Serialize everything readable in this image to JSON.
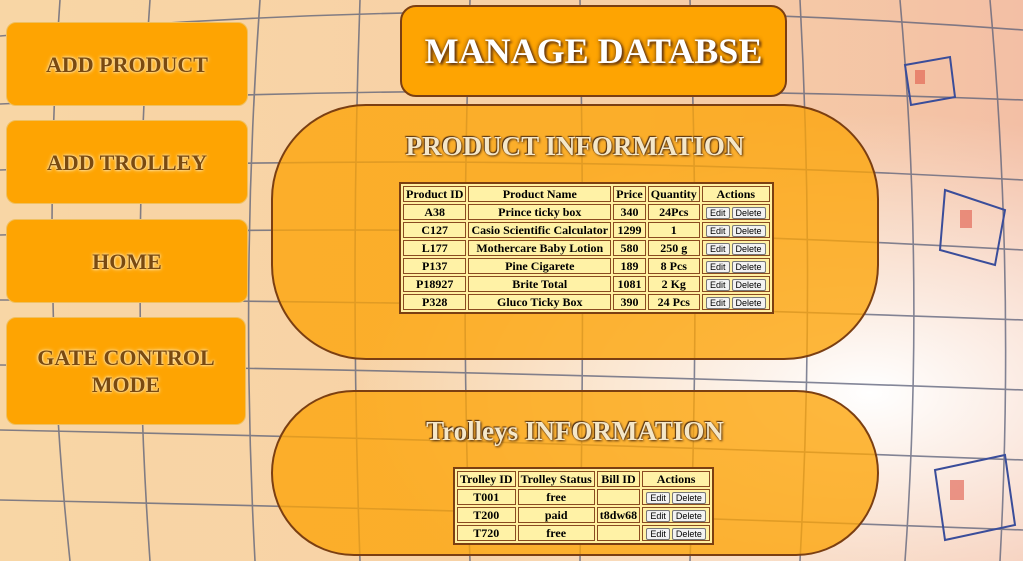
{
  "sidebar": {
    "items": [
      {
        "label": "ADD PRODUCT"
      },
      {
        "label": "ADD TROLLEY"
      },
      {
        "label": "HOME"
      },
      {
        "label": "GATE CONTROL MODE"
      }
    ]
  },
  "header": {
    "title": "MANAGE DATABSE"
  },
  "products": {
    "title": "PRODUCT INFORMATION",
    "columns": [
      "Product ID",
      "Product Name",
      "Price",
      "Quantity",
      "Actions"
    ],
    "rows": [
      {
        "id": "A38",
        "name": "Prince ticky box",
        "price": "340",
        "qty": "24Pcs"
      },
      {
        "id": "C127",
        "name": "Casio Scientific Calculator",
        "price": "1299",
        "qty": "1"
      },
      {
        "id": "L177",
        "name": "Mothercare Baby Lotion",
        "price": "580",
        "qty": "250 g"
      },
      {
        "id": "P137",
        "name": "Pine Cigarete",
        "price": "189",
        "qty": "8 Pcs"
      },
      {
        "id": "P18927",
        "name": "Brite Total",
        "price": "1081",
        "qty": "2 Kg"
      },
      {
        "id": "P328",
        "name": "Gluco Ticky Box",
        "price": "390",
        "qty": "24 Pcs"
      }
    ]
  },
  "trolleys": {
    "title": "Trolleys INFORMATION",
    "columns": [
      "Trolley ID",
      "Trolley Status",
      "Bill ID",
      "Actions"
    ],
    "rows": [
      {
        "id": "T001",
        "status": "free",
        "bill": ""
      },
      {
        "id": "T200",
        "status": "paid",
        "bill": "t8dw68"
      },
      {
        "id": "T720",
        "status": "free",
        "bill": ""
      }
    ]
  },
  "actions": {
    "edit": "Edit",
    "delete": "Delete"
  },
  "colors": {
    "accent": "#fea402",
    "border": "#7b3f12",
    "table_bg": "#fff2a6",
    "panel": "#fca408"
  }
}
